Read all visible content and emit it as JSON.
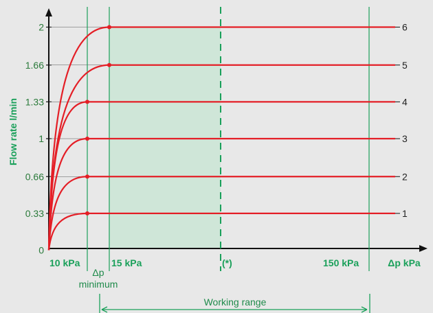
{
  "chart_data": {
    "type": "line",
    "ylabel": "Flow rate l/min",
    "xlabel": "Δp kPa",
    "yticks": [
      "0",
      "0.33",
      "0.66",
      "1",
      "1.33",
      "1.66",
      "2"
    ],
    "xmarkers": [
      {
        "label": "10 kPa"
      },
      {
        "label": "15 kPa"
      },
      {
        "label": "(*)"
      },
      {
        "label": "150 kPa"
      }
    ],
    "dp_minimum_label": [
      "Δp",
      "minimum"
    ],
    "working_range_label": "Working range",
    "series": [
      {
        "name": "1",
        "value": 0.33
      },
      {
        "name": "2",
        "value": 0.66
      },
      {
        "name": "3",
        "value": 1
      },
      {
        "name": "4",
        "value": 1.33
      },
      {
        "name": "5",
        "value": 1.66
      },
      {
        "name": "6",
        "value": 2
      }
    ],
    "ylim": [
      0,
      2
    ],
    "colors": {
      "curve": "#e41e26",
      "accent": "#1aa05a",
      "shade": "#cfe6d8"
    }
  }
}
